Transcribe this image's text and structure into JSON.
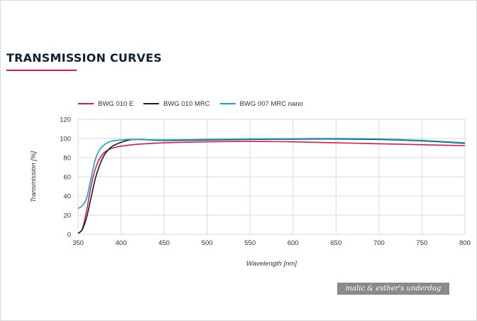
{
  "page": {
    "section_title": "TRANSMISSION CURVES",
    "watermark": "malic & esther's underdog"
  },
  "colors": {
    "accent": "#d81b4a",
    "title": "#0d2233",
    "grid": "#d9d9d9"
  },
  "chart_data": {
    "type": "line",
    "title": "",
    "xlabel": "Wavelength [nm]",
    "ylabel": "Transmission [%]",
    "xlim": [
      350,
      800
    ],
    "ylim": [
      0,
      120
    ],
    "xticks": [
      350,
      400,
      450,
      500,
      550,
      600,
      650,
      700,
      750,
      800
    ],
    "yticks": [
      0,
      20,
      40,
      60,
      80,
      100,
      120
    ],
    "grid": true,
    "legend_position": "top-left",
    "series": [
      {
        "name": "BWG 010 E",
        "color": "#d81b4a",
        "points": [
          [
            350,
            1
          ],
          [
            355,
            6
          ],
          [
            360,
            25
          ],
          [
            365,
            50
          ],
          [
            370,
            68
          ],
          [
            375,
            79
          ],
          [
            380,
            85
          ],
          [
            385,
            88
          ],
          [
            390,
            90
          ],
          [
            400,
            92
          ],
          [
            420,
            94
          ],
          [
            450,
            95.5
          ],
          [
            500,
            96.5
          ],
          [
            550,
            97
          ],
          [
            600,
            96.5
          ],
          [
            650,
            95.5
          ],
          [
            700,
            94.5
          ],
          [
            750,
            93.5
          ],
          [
            800,
            92.5
          ]
        ]
      },
      {
        "name": "BWG 010 MRC",
        "color": "#0d2233",
        "points": [
          [
            350,
            1
          ],
          [
            355,
            5
          ],
          [
            360,
            18
          ],
          [
            365,
            38
          ],
          [
            370,
            58
          ],
          [
            375,
            72
          ],
          [
            380,
            82
          ],
          [
            385,
            88
          ],
          [
            390,
            92
          ],
          [
            400,
            96
          ],
          [
            410,
            98.5
          ],
          [
            420,
            99
          ],
          [
            450,
            98
          ],
          [
            500,
            98.5
          ],
          [
            550,
            99
          ],
          [
            600,
            99.3
          ],
          [
            650,
            99.5
          ],
          [
            700,
            99
          ],
          [
            750,
            97.5
          ],
          [
            800,
            95
          ]
        ]
      },
      {
        "name": "BWG 007 MRC nano",
        "color": "#1aa0cc",
        "points": [
          [
            350,
            27
          ],
          [
            355,
            30
          ],
          [
            360,
            38
          ],
          [
            365,
            58
          ],
          [
            370,
            78
          ],
          [
            375,
            88
          ],
          [
            380,
            93
          ],
          [
            385,
            96
          ],
          [
            390,
            97.5
          ],
          [
            400,
            98.5
          ],
          [
            410,
            99
          ],
          [
            420,
            99
          ],
          [
            450,
            98.5
          ],
          [
            500,
            99
          ],
          [
            550,
            99.5
          ],
          [
            600,
            99.8
          ],
          [
            650,
            100
          ],
          [
            700,
            99.5
          ],
          [
            750,
            98
          ],
          [
            800,
            95.5
          ]
        ]
      }
    ]
  }
}
